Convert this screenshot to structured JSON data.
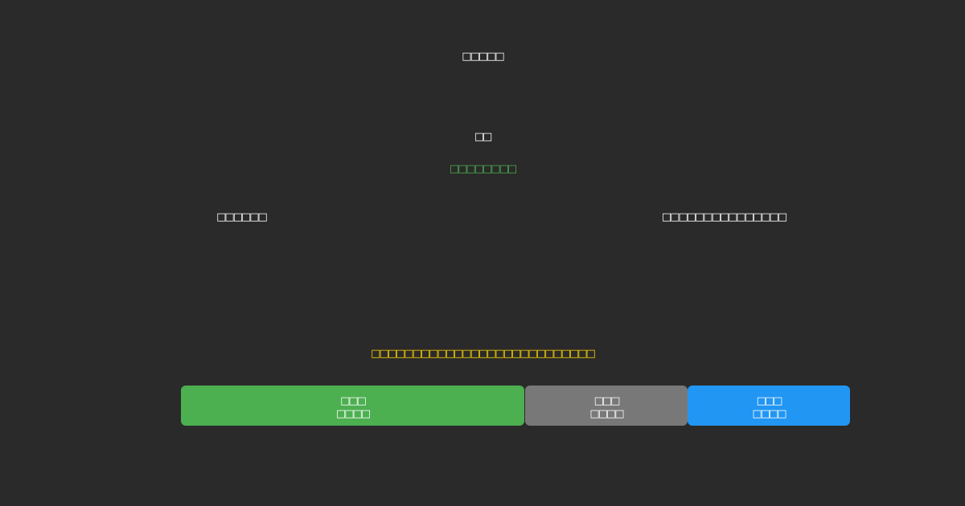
{
  "title": "□□□□□",
  "score": "□□",
  "status": "□□□□□□□□",
  "left_label": "□□□□□□",
  "right_label": "□□□□□□□□□□□□□□□",
  "hint": "□□□□□□□□□□□□□□□□□□□□□□□□□□□",
  "buttons": [
    {
      "line1": "□□□",
      "line2": "□□□□",
      "color": "#4caf50"
    },
    {
      "line1": "□□□",
      "line2": "□□□□",
      "color": "#787878"
    },
    {
      "line1": "□□□",
      "line2": "□□□□",
      "color": "#2196f3"
    }
  ],
  "colors": {
    "background": "#2a2a2a",
    "status": "#4caf50",
    "hint": "#ffd700"
  }
}
